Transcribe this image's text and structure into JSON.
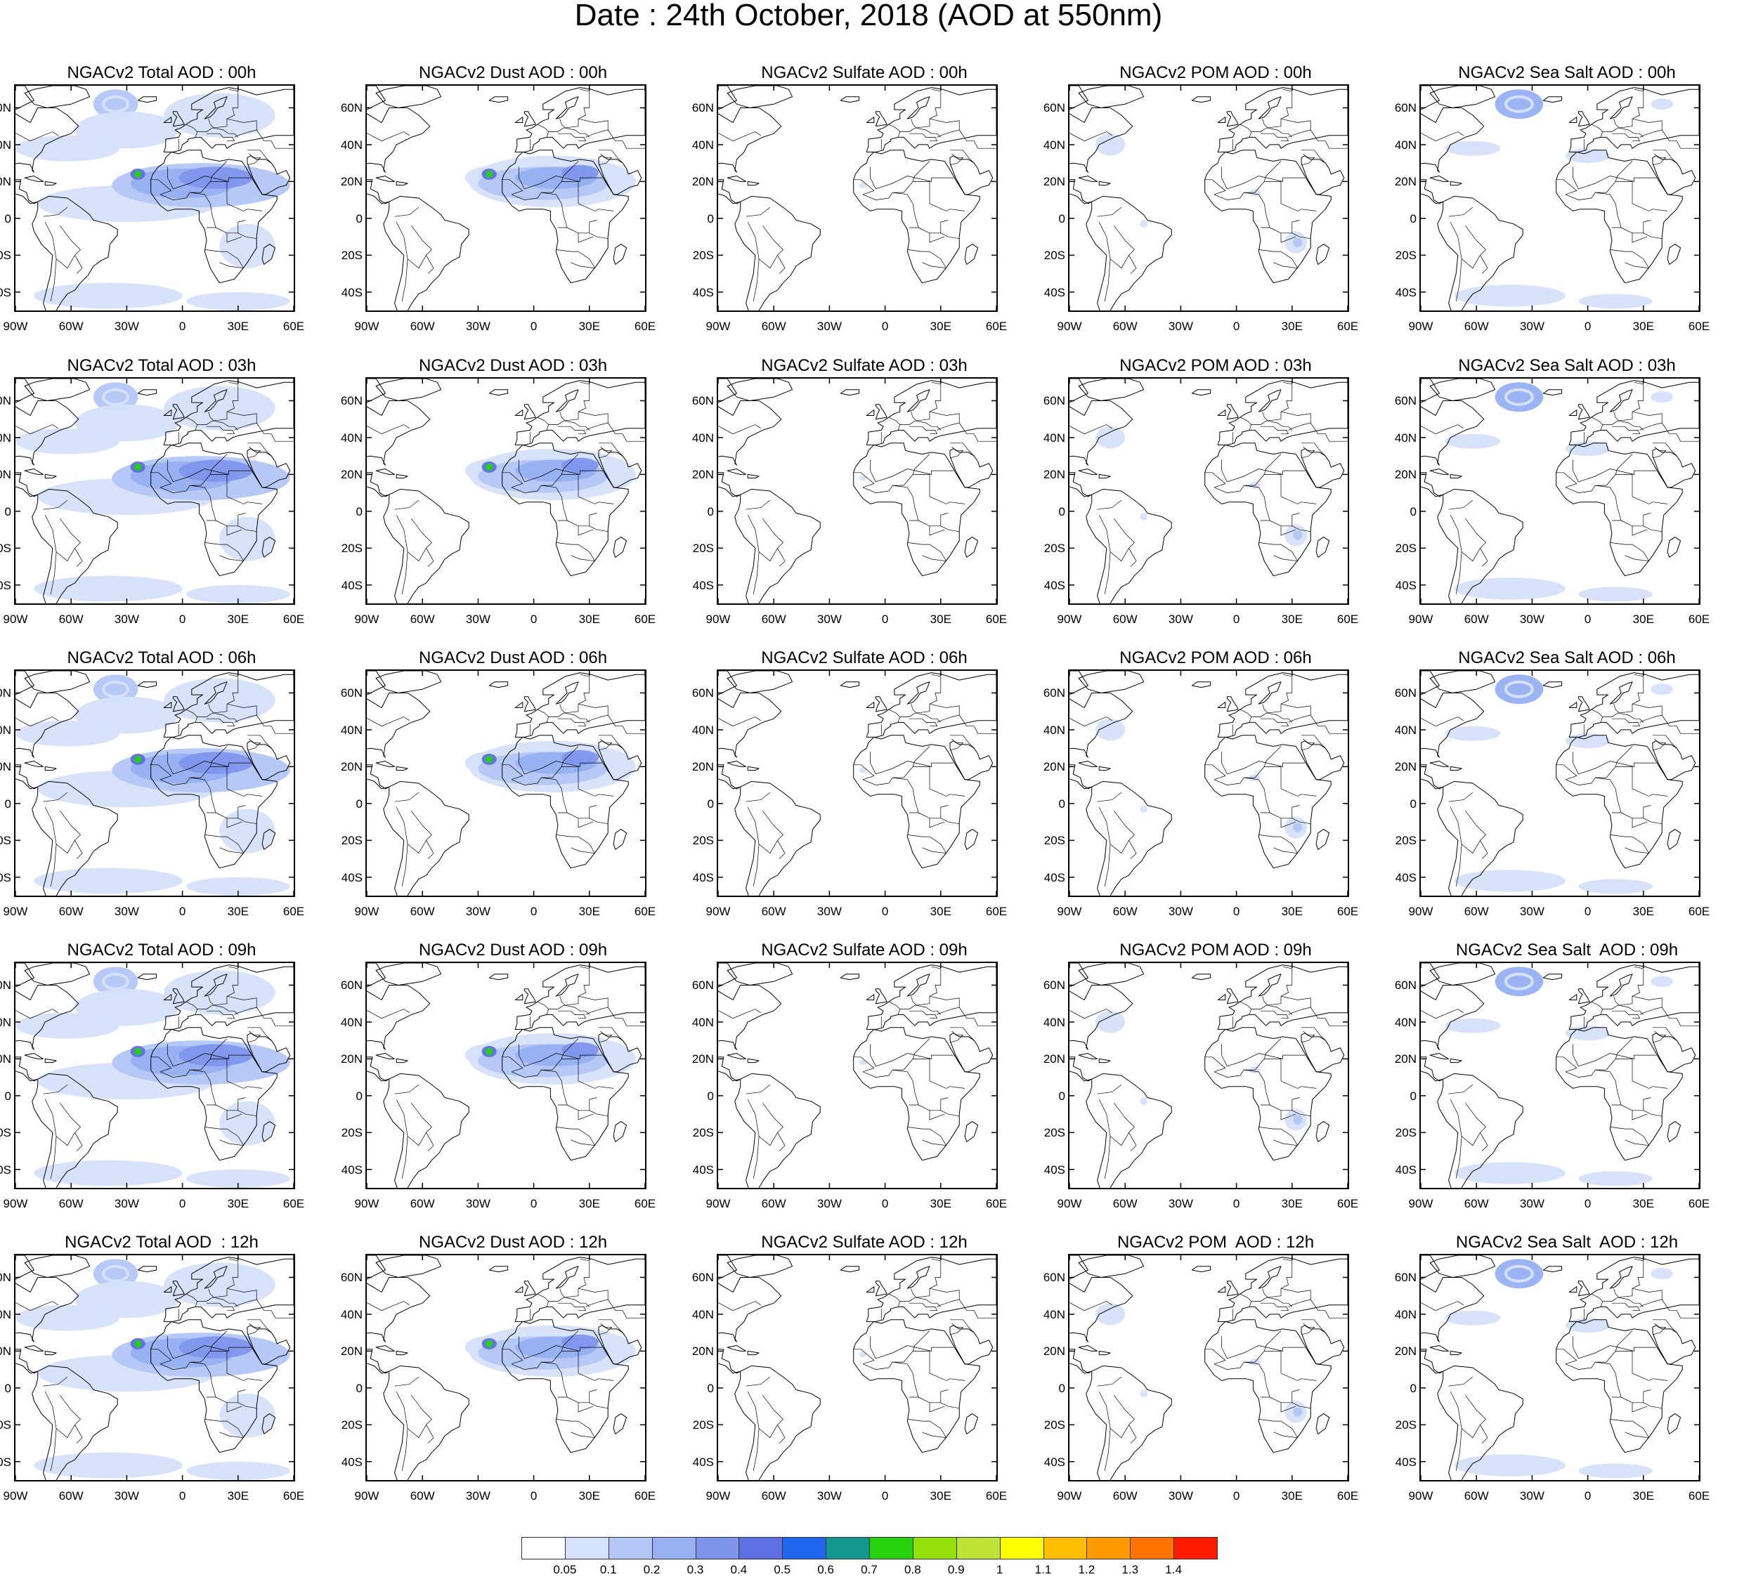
{
  "title": "Date : 24th October, 2018 (AOD at 550nm)",
  "lat_labels": [
    "60N",
    "40N",
    "20N",
    "0",
    "20S",
    "40S"
  ],
  "lon_labels": [
    "90W",
    "60W",
    "30W",
    "0",
    "30E",
    "60E"
  ],
  "rows": [
    {
      "panels": [
        {
          "title": "NGACv2 Total AOD : 00h",
          "field": "total"
        },
        {
          "title": "NGACv2 Dust AOD : 00h",
          "field": "dust"
        },
        {
          "title": "NGACv2 Sulfate AOD : 00h",
          "field": "sulfate"
        },
        {
          "title": "NGACv2 POM AOD : 00h",
          "field": "pom"
        },
        {
          "title": "NGACv2 Sea Salt AOD : 00h",
          "field": "seasalt"
        }
      ]
    },
    {
      "panels": [
        {
          "title": "NGACv2 Total AOD : 03h",
          "field": "total"
        },
        {
          "title": "NGACv2 Dust AOD : 03h",
          "field": "dust"
        },
        {
          "title": "NGACv2 Sulfate AOD : 03h",
          "field": "sulfate"
        },
        {
          "title": "NGACv2 POM AOD : 03h",
          "field": "pom"
        },
        {
          "title": "NGACv2 Sea Salt AOD : 03h",
          "field": "seasalt"
        }
      ]
    },
    {
      "panels": [
        {
          "title": "NGACv2 Total AOD : 06h",
          "field": "total"
        },
        {
          "title": "NGACv2 Dust AOD : 06h",
          "field": "dust"
        },
        {
          "title": "NGACv2 Sulfate AOD : 06h",
          "field": "sulfate"
        },
        {
          "title": "NGACv2 POM AOD : 06h",
          "field": "pom"
        },
        {
          "title": "NGACv2 Sea Salt AOD : 06h",
          "field": "seasalt"
        }
      ]
    },
    {
      "panels": [
        {
          "title": "NGACv2 Total AOD : 09h",
          "field": "total"
        },
        {
          "title": "NGACv2 Dust AOD : 09h",
          "field": "dust"
        },
        {
          "title": "NGACv2 Sulfate AOD : 09h",
          "field": "sulfate"
        },
        {
          "title": "NGACv2 POM AOD : 09h",
          "field": "pom"
        },
        {
          "title": "NGACv2 Sea Salt  AOD : 09h",
          "field": "seasalt"
        }
      ]
    },
    {
      "panels": [
        {
          "title": "NGACv2 Total AOD  : 12h",
          "field": "total"
        },
        {
          "title": "NGACv2 Dust AOD : 12h",
          "field": "dust"
        },
        {
          "title": "NGACv2 Sulfate AOD : 12h",
          "field": "sulfate"
        },
        {
          "title": "NGACv2 POM  AOD : 12h",
          "field": "pom"
        },
        {
          "title": "NGACv2 Sea Salt  AOD : 12h",
          "field": "seasalt"
        }
      ]
    }
  ],
  "colorbar": {
    "labels": [
      "0.05",
      "0.1",
      "0.2",
      "0.3",
      "0.4",
      "0.5",
      "0.6",
      "0.7",
      "0.8",
      "0.9",
      "1",
      "1.1",
      "1.2",
      "1.3",
      "1.4"
    ],
    "colors": [
      "#ffffff",
      "#d6e1fb",
      "#b3c6f6",
      "#97b0f2",
      "#7f95ec",
      "#5e6fe2",
      "#1f66f0",
      "#12968f",
      "#26d20d",
      "#93e00a",
      "#bde337",
      "#ffff00",
      "#ffbf00",
      "#ff9a00",
      "#ff7400",
      "#ff1a00"
    ]
  }
}
